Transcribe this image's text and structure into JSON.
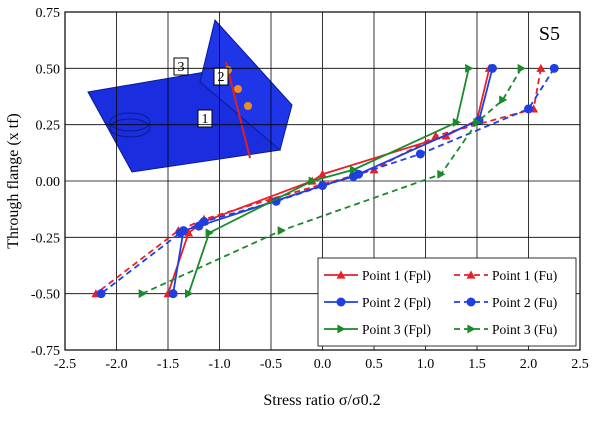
{
  "chart_data": {
    "type": "line",
    "x_label": "Stress ratio σ/σ0.2",
    "y_label": "Through flange (x tf)",
    "annotation": "S5",
    "inset_labels": [
      "3",
      "2",
      "1"
    ],
    "xlim": [
      -2.5,
      2.5
    ],
    "xticks": [
      -2.5,
      {
        "value": -2.0,
        "label": "-2.0"
      },
      -1.5,
      {
        "value": -1.0,
        "label": "-1.0"
      },
      -0.5,
      {
        "value": 0.0,
        "label": "0.0"
      },
      0.5,
      {
        "value": 1.0,
        "label": "1.0"
      },
      1.5,
      {
        "value": 2.0,
        "label": "2.0"
      },
      2.5
    ],
    "ylim": [
      -0.75,
      0.75
    ],
    "yticks": [
      -0.75,
      {
        "value": -0.5,
        "label": "-0.50"
      },
      -0.25,
      {
        "value": 0.0,
        "label": "0.00"
      },
      0.25,
      {
        "value": 0.5,
        "label": "0.50"
      },
      0.75
    ],
    "grid": true,
    "series": [
      {
        "name": "Point 1 (Fpl)",
        "color": "#e8202a",
        "marker": "triangle-up",
        "dashed": false,
        "x": [
          1.62,
          1.5,
          1.2,
          0.0,
          -0.1,
          -1.15,
          -1.3,
          -1.5
        ],
        "values": [
          0.5,
          0.27,
          0.2,
          0.03,
          0.0,
          -0.18,
          -0.23,
          -0.5
        ]
      },
      {
        "name": "Point 1 (Fu)",
        "color": "#e8202a",
        "marker": "triangle-up",
        "dashed": true,
        "x": [
          2.12,
          2.05,
          1.1,
          0.5,
          -0.5,
          -1.15,
          -1.4,
          -2.2
        ],
        "values": [
          0.5,
          0.32,
          0.2,
          0.05,
          -0.08,
          -0.17,
          -0.22,
          -0.5
        ]
      },
      {
        "name": "Point 2 (Fpl)",
        "color": "#1f3fe0",
        "marker": "circle",
        "dashed": false,
        "x": [
          1.65,
          1.52,
          0.3,
          0.0,
          -1.2,
          -1.35,
          -1.45
        ],
        "values": [
          0.5,
          0.27,
          0.02,
          -0.02,
          -0.2,
          -0.22,
          -0.5
        ]
      },
      {
        "name": "Point 2 (Fu)",
        "color": "#1f3fe0",
        "marker": "circle",
        "dashed": true,
        "x": [
          2.25,
          2.0,
          0.95,
          0.35,
          -0.45,
          -1.15,
          -1.38,
          -2.15
        ],
        "values": [
          0.5,
          0.32,
          0.12,
          0.03,
          -0.09,
          -0.18,
          -0.23,
          -0.5
        ]
      },
      {
        "name": "Point 3 (Fpl)",
        "color": "#1a8a2a",
        "marker": "triangle-right",
        "dashed": false,
        "x": [
          1.42,
          1.3,
          0.3,
          -0.1,
          -1.1,
          -1.3
        ],
        "values": [
          0.5,
          0.26,
          0.05,
          0.0,
          -0.23,
          -0.5
        ]
      },
      {
        "name": "Point 3 (Fu)",
        "color": "#1a8a2a",
        "marker": "triangle-right",
        "dashed": true,
        "x": [
          1.93,
          1.75,
          1.5,
          1.15,
          -0.4,
          -1.75
        ],
        "values": [
          0.5,
          0.36,
          0.26,
          0.03,
          -0.22,
          -0.5
        ]
      }
    ]
  }
}
